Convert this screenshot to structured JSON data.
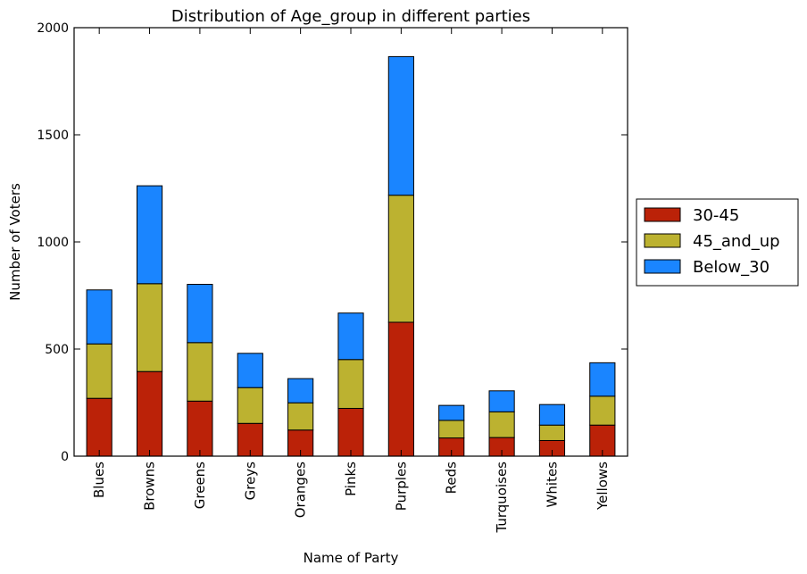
{
  "chart_data": {
    "type": "bar",
    "stacked": true,
    "title": "Distribution of Age_group in different parties",
    "xlabel": "Name of Party",
    "ylabel": "Number of Voters",
    "ylim": [
      0,
      2000
    ],
    "yticks": [
      0,
      500,
      1000,
      1500,
      2000
    ],
    "categories": [
      "Blues",
      "Browns",
      "Greens",
      "Greys",
      "Oranges",
      "Pinks",
      "Purples",
      "Reds",
      "Turquoises",
      "Whites",
      "Yellows"
    ],
    "series": [
      {
        "name": "30-45",
        "color": "#bb2208",
        "values": [
          270,
          395,
          257,
          153,
          122,
          223,
          625,
          85,
          87,
          73,
          145
        ]
      },
      {
        "name": "45_and_up",
        "color": "#bcb230",
        "values": [
          254,
          410,
          273,
          167,
          127,
          228,
          593,
          82,
          120,
          72,
          135
        ]
      },
      {
        "name": "Below_30",
        "color": "#1a85ff",
        "values": [
          252,
          457,
          272,
          160,
          113,
          217,
          647,
          70,
          98,
          96,
          156
        ]
      }
    ],
    "legend_position": "right-outside"
  }
}
